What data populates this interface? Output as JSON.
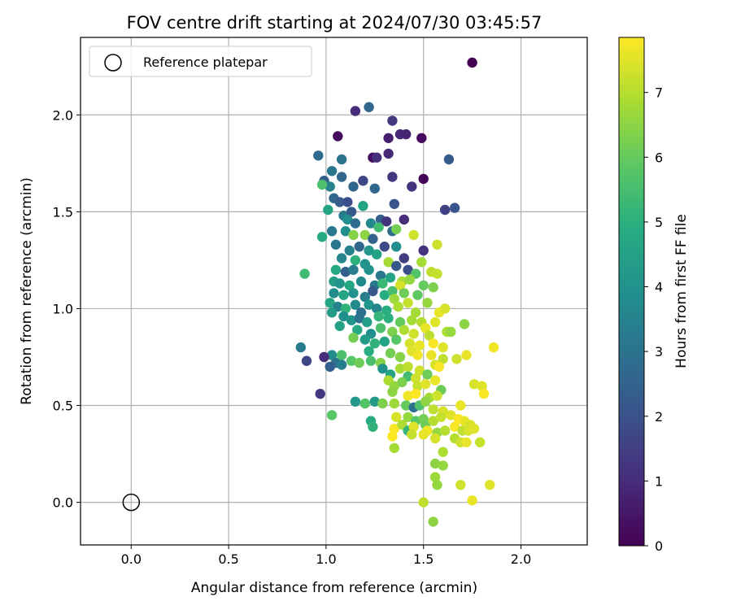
{
  "chart_data": {
    "type": "scatter",
    "title": "FOV centre drift starting at 2024/07/30 03:45:57",
    "xlabel": "Angular distance from reference (arcmin)",
    "ylabel": "Rotation from reference (arcmin)",
    "xlim": [
      -0.26,
      2.34
    ],
    "ylim": [
      -0.22,
      2.4
    ],
    "xticks": [
      0.0,
      0.5,
      1.0,
      1.5,
      2.0
    ],
    "xtick_labels": [
      "0.0",
      "0.5",
      "1.0",
      "1.5",
      "2.0"
    ],
    "yticks": [
      0.0,
      0.5,
      1.0,
      1.5,
      2.0
    ],
    "ytick_labels": [
      "0.0",
      "0.5",
      "1.0",
      "1.5",
      "2.0"
    ],
    "grid": true,
    "legend": {
      "placement": "upper-left",
      "entries": [
        "Reference platepar"
      ]
    },
    "reference_point": {
      "x": 0.0,
      "y": 0.0,
      "marker": "open-circle",
      "edge_color": "#000000"
    },
    "colorbar": {
      "label": "Hours from first FF file",
      "colormap": "viridis",
      "min": 0,
      "max": 7.85,
      "ticks": [
        0,
        1,
        2,
        3,
        4,
        5,
        6,
        7
      ],
      "tick_labels": [
        "0",
        "1",
        "2",
        "3",
        "4",
        "5",
        "6",
        "7"
      ]
    },
    "points": [
      {
        "x": 1.75,
        "y": 2.27,
        "h": 0.0
      },
      {
        "x": 1.06,
        "y": 1.89,
        "h": 0.2
      },
      {
        "x": 1.24,
        "y": 1.78,
        "h": 0.3
      },
      {
        "x": 1.49,
        "y": 1.88,
        "h": 0.2
      },
      {
        "x": 1.5,
        "y": 1.67,
        "h": 0.1
      },
      {
        "x": 1.32,
        "y": 1.88,
        "h": 0.7
      },
      {
        "x": 1.38,
        "y": 1.9,
        "h": 0.9
      },
      {
        "x": 1.41,
        "y": 1.9,
        "h": 0.8
      },
      {
        "x": 1.32,
        "y": 1.8,
        "h": 0.9
      },
      {
        "x": 1.26,
        "y": 1.78,
        "h": 1.1
      },
      {
        "x": 1.15,
        "y": 2.02,
        "h": 1.0
      },
      {
        "x": 1.34,
        "y": 1.97,
        "h": 1.3
      },
      {
        "x": 1.44,
        "y": 1.63,
        "h": 1.2
      },
      {
        "x": 1.34,
        "y": 1.68,
        "h": 1.3
      },
      {
        "x": 1.22,
        "y": 2.04,
        "h": 2.6
      },
      {
        "x": 1.63,
        "y": 1.77,
        "h": 2.3
      },
      {
        "x": 1.61,
        "y": 1.51,
        "h": 1.5
      },
      {
        "x": 1.66,
        "y": 1.52,
        "h": 2.1
      },
      {
        "x": 1.5,
        "y": 1.3,
        "h": 1.2
      },
      {
        "x": 0.96,
        "y": 1.79,
        "h": 2.8
      },
      {
        "x": 1.08,
        "y": 1.77,
        "h": 3.0
      },
      {
        "x": 1.03,
        "y": 1.71,
        "h": 3.1
      },
      {
        "x": 0.99,
        "y": 1.66,
        "h": 2.4
      },
      {
        "x": 1.02,
        "y": 1.63,
        "h": 3.5
      },
      {
        "x": 0.98,
        "y": 1.64,
        "h": 5.6
      },
      {
        "x": 1.08,
        "y": 1.68,
        "h": 2.6
      },
      {
        "x": 1.14,
        "y": 1.63,
        "h": 2.6
      },
      {
        "x": 1.19,
        "y": 1.66,
        "h": 1.7
      },
      {
        "x": 1.25,
        "y": 1.62,
        "h": 2.6
      },
      {
        "x": 1.35,
        "y": 1.54,
        "h": 2.1
      },
      {
        "x": 1.04,
        "y": 1.57,
        "h": 2.7
      },
      {
        "x": 1.07,
        "y": 1.55,
        "h": 2.3
      },
      {
        "x": 1.11,
        "y": 1.55,
        "h": 1.9
      },
      {
        "x": 1.01,
        "y": 1.51,
        "h": 4.6
      },
      {
        "x": 1.09,
        "y": 1.48,
        "h": 3.3
      },
      {
        "x": 1.13,
        "y": 1.5,
        "h": 2.2
      },
      {
        "x": 1.19,
        "y": 1.53,
        "h": 4.6
      },
      {
        "x": 1.11,
        "y": 1.46,
        "h": 3.9
      },
      {
        "x": 1.15,
        "y": 1.44,
        "h": 2.8
      },
      {
        "x": 1.23,
        "y": 1.44,
        "h": 3.7
      },
      {
        "x": 1.28,
        "y": 1.46,
        "h": 2.4
      },
      {
        "x": 1.31,
        "y": 1.45,
        "h": 1.2
      },
      {
        "x": 1.4,
        "y": 1.46,
        "h": 1.0
      },
      {
        "x": 0.98,
        "y": 1.37,
        "h": 4.8
      },
      {
        "x": 1.03,
        "y": 1.4,
        "h": 3.2
      },
      {
        "x": 1.1,
        "y": 1.4,
        "h": 3.9
      },
      {
        "x": 1.14,
        "y": 1.38,
        "h": 6.4
      },
      {
        "x": 1.2,
        "y": 1.38,
        "h": 6.5
      },
      {
        "x": 1.24,
        "y": 1.36,
        "h": 2.5
      },
      {
        "x": 1.27,
        "y": 1.42,
        "h": 5.4
      },
      {
        "x": 1.34,
        "y": 1.4,
        "h": 2.8
      },
      {
        "x": 1.36,
        "y": 1.41,
        "h": 6.2
      },
      {
        "x": 1.45,
        "y": 1.38,
        "h": 7.3
      },
      {
        "x": 1.57,
        "y": 1.33,
        "h": 7.3
      },
      {
        "x": 1.05,
        "y": 1.33,
        "h": 3.1
      },
      {
        "x": 1.12,
        "y": 1.3,
        "h": 3.5
      },
      {
        "x": 1.17,
        "y": 1.32,
        "h": 2.6
      },
      {
        "x": 1.22,
        "y": 1.3,
        "h": 4.2
      },
      {
        "x": 1.3,
        "y": 1.32,
        "h": 1.8
      },
      {
        "x": 1.36,
        "y": 1.32,
        "h": 3.9
      },
      {
        "x": 1.08,
        "y": 1.26,
        "h": 3.6
      },
      {
        "x": 1.15,
        "y": 1.25,
        "h": 5.0
      },
      {
        "x": 1.2,
        "y": 1.23,
        "h": 4.0
      },
      {
        "x": 1.26,
        "y": 1.28,
        "h": 4.5
      },
      {
        "x": 1.32,
        "y": 1.24,
        "h": 6.8
      },
      {
        "x": 1.36,
        "y": 1.22,
        "h": 2.2
      },
      {
        "x": 1.4,
        "y": 1.26,
        "h": 1.4
      },
      {
        "x": 1.49,
        "y": 1.24,
        "h": 6.8
      },
      {
        "x": 1.54,
        "y": 1.19,
        "h": 7.1
      },
      {
        "x": 1.57,
        "y": 1.18,
        "h": 7.2
      },
      {
        "x": 0.89,
        "y": 1.18,
        "h": 5.4
      },
      {
        "x": 1.05,
        "y": 1.2,
        "h": 4.8
      },
      {
        "x": 1.1,
        "y": 1.19,
        "h": 2.4
      },
      {
        "x": 1.14,
        "y": 1.2,
        "h": 3.3
      },
      {
        "x": 1.22,
        "y": 1.2,
        "h": 4.0
      },
      {
        "x": 1.28,
        "y": 1.17,
        "h": 3.1
      },
      {
        "x": 1.33,
        "y": 1.16,
        "h": 4.6
      },
      {
        "x": 1.42,
        "y": 1.2,
        "h": 1.9
      },
      {
        "x": 1.46,
        "y": 1.18,
        "h": 5.7
      },
      {
        "x": 1.39,
        "y": 1.14,
        "h": 6.8
      },
      {
        "x": 1.04,
        "y": 1.14,
        "h": 4.4
      },
      {
        "x": 1.07,
        "y": 1.13,
        "h": 4.1
      },
      {
        "x": 1.12,
        "y": 1.12,
        "h": 4.7
      },
      {
        "x": 1.18,
        "y": 1.14,
        "h": 3.7
      },
      {
        "x": 1.25,
        "y": 1.12,
        "h": 3.2
      },
      {
        "x": 1.29,
        "y": 1.13,
        "h": 5.3
      },
      {
        "x": 1.38,
        "y": 1.12,
        "h": 7.4
      },
      {
        "x": 1.43,
        "y": 1.15,
        "h": 6.6
      },
      {
        "x": 1.5,
        "y": 1.12,
        "h": 6.0
      },
      {
        "x": 1.55,
        "y": 1.11,
        "h": 6.3
      },
      {
        "x": 1.04,
        "y": 1.08,
        "h": 3.8
      },
      {
        "x": 1.09,
        "y": 1.07,
        "h": 4.6
      },
      {
        "x": 1.14,
        "y": 1.08,
        "h": 4.0
      },
      {
        "x": 1.2,
        "y": 1.06,
        "h": 3.4
      },
      {
        "x": 1.24,
        "y": 1.09,
        "h": 2.2
      },
      {
        "x": 1.3,
        "y": 1.07,
        "h": 4.9
      },
      {
        "x": 1.34,
        "y": 1.09,
        "h": 5.5
      },
      {
        "x": 1.35,
        "y": 1.05,
        "h": 6.7
      },
      {
        "x": 1.4,
        "y": 1.08,
        "h": 6.1
      },
      {
        "x": 1.47,
        "y": 1.07,
        "h": 5.9
      },
      {
        "x": 1.02,
        "y": 1.03,
        "h": 4.7
      },
      {
        "x": 1.06,
        "y": 1.01,
        "h": 3.5
      },
      {
        "x": 1.1,
        "y": 1.0,
        "h": 5.1
      },
      {
        "x": 1.15,
        "y": 1.02,
        "h": 3.8
      },
      {
        "x": 1.18,
        "y": 0.98,
        "h": 2.9
      },
      {
        "x": 1.22,
        "y": 1.02,
        "h": 4.1
      },
      {
        "x": 1.26,
        "y": 1.0,
        "h": 3.6
      },
      {
        "x": 1.31,
        "y": 0.99,
        "h": 4.9
      },
      {
        "x": 1.37,
        "y": 1.01,
        "h": 6.9
      },
      {
        "x": 1.42,
        "y": 1.03,
        "h": 7.2
      },
      {
        "x": 1.46,
        "y": 0.98,
        "h": 6.8
      },
      {
        "x": 1.52,
        "y": 1.03,
        "h": 6.6
      },
      {
        "x": 1.58,
        "y": 0.98,
        "h": 7.6
      },
      {
        "x": 1.61,
        "y": 1.0,
        "h": 7.4
      },
      {
        "x": 1.03,
        "y": 0.98,
        "h": 4.3
      },
      {
        "x": 1.09,
        "y": 0.96,
        "h": 3.9
      },
      {
        "x": 1.13,
        "y": 0.94,
        "h": 4.1
      },
      {
        "x": 1.17,
        "y": 0.95,
        "h": 3.0
      },
      {
        "x": 1.21,
        "y": 0.93,
        "h": 4.4
      },
      {
        "x": 1.27,
        "y": 0.96,
        "h": 5.2
      },
      {
        "x": 1.32,
        "y": 0.95,
        "h": 5.0
      },
      {
        "x": 1.38,
        "y": 0.93,
        "h": 6.0
      },
      {
        "x": 1.44,
        "y": 0.94,
        "h": 6.8
      },
      {
        "x": 1.49,
        "y": 0.93,
        "h": 7.0
      },
      {
        "x": 1.56,
        "y": 0.93,
        "h": 7.5
      },
      {
        "x": 1.07,
        "y": 0.91,
        "h": 4.5
      },
      {
        "x": 1.16,
        "y": 0.89,
        "h": 4.8
      },
      {
        "x": 1.23,
        "y": 0.87,
        "h": 3.9
      },
      {
        "x": 1.28,
        "y": 0.9,
        "h": 5.6
      },
      {
        "x": 1.34,
        "y": 0.88,
        "h": 6.3
      },
      {
        "x": 1.4,
        "y": 0.89,
        "h": 6.9
      },
      {
        "x": 1.45,
        "y": 0.87,
        "h": 7.3
      },
      {
        "x": 1.51,
        "y": 0.9,
        "h": 7.6
      },
      {
        "x": 1.53,
        "y": 0.86,
        "h": 7.1
      },
      {
        "x": 1.62,
        "y": 0.88,
        "h": 6.9
      },
      {
        "x": 1.64,
        "y": 0.88,
        "h": 6.6
      },
      {
        "x": 1.71,
        "y": 0.92,
        "h": 6.5
      },
      {
        "x": 1.14,
        "y": 0.85,
        "h": 6.2
      },
      {
        "x": 1.2,
        "y": 0.84,
        "h": 4.3
      },
      {
        "x": 1.25,
        "y": 0.82,
        "h": 5.1
      },
      {
        "x": 1.3,
        "y": 0.83,
        "h": 4.6
      },
      {
        "x": 1.36,
        "y": 0.84,
        "h": 5.8
      },
      {
        "x": 1.43,
        "y": 0.82,
        "h": 7.4
      },
      {
        "x": 1.48,
        "y": 0.81,
        "h": 7.6
      },
      {
        "x": 1.55,
        "y": 0.82,
        "h": 7.8
      },
      {
        "x": 1.6,
        "y": 0.8,
        "h": 7.5
      },
      {
        "x": 1.86,
        "y": 0.8,
        "h": 7.7
      },
      {
        "x": 0.87,
        "y": 0.8,
        "h": 3.3
      },
      {
        "x": 1.03,
        "y": 0.76,
        "h": 3.8
      },
      {
        "x": 1.05,
        "y": 0.72,
        "h": 3.0
      },
      {
        "x": 1.08,
        "y": 0.76,
        "h": 5.6
      },
      {
        "x": 1.13,
        "y": 0.73,
        "h": 5.8
      },
      {
        "x": 1.17,
        "y": 0.72,
        "h": 6.1
      },
      {
        "x": 1.22,
        "y": 0.78,
        "h": 4.9
      },
      {
        "x": 1.23,
        "y": 0.73,
        "h": 5.6
      },
      {
        "x": 1.28,
        "y": 0.72,
        "h": 6.4
      },
      {
        "x": 1.33,
        "y": 0.77,
        "h": 6.2
      },
      {
        "x": 1.38,
        "y": 0.75,
        "h": 6.4
      },
      {
        "x": 1.44,
        "y": 0.78,
        "h": 7.5
      },
      {
        "x": 1.47,
        "y": 0.76,
        "h": 7.7
      },
      {
        "x": 1.54,
        "y": 0.76,
        "h": 7.6
      },
      {
        "x": 1.56,
        "y": 0.71,
        "h": 7.4
      },
      {
        "x": 1.6,
        "y": 0.74,
        "h": 7.1
      },
      {
        "x": 1.67,
        "y": 0.74,
        "h": 7.3
      },
      {
        "x": 1.72,
        "y": 0.76,
        "h": 7.6
      },
      {
        "x": 0.9,
        "y": 0.73,
        "h": 1.7
      },
      {
        "x": 0.99,
        "y": 0.75,
        "h": 1.0
      },
      {
        "x": 1.02,
        "y": 0.7,
        "h": 2.4
      },
      {
        "x": 1.08,
        "y": 0.71,
        "h": 3.4
      },
      {
        "x": 1.29,
        "y": 0.69,
        "h": 4.0
      },
      {
        "x": 1.38,
        "y": 0.69,
        "h": 6.8
      },
      {
        "x": 1.42,
        "y": 0.7,
        "h": 7.1
      },
      {
        "x": 1.48,
        "y": 0.68,
        "h": 7.3
      },
      {
        "x": 1.58,
        "y": 0.7,
        "h": 7.8
      },
      {
        "x": 1.33,
        "y": 0.66,
        "h": 4.5
      },
      {
        "x": 1.42,
        "y": 0.65,
        "h": 5.4
      },
      {
        "x": 1.46,
        "y": 0.64,
        "h": 7.3
      },
      {
        "x": 1.52,
        "y": 0.66,
        "h": 6.1
      },
      {
        "x": 1.56,
        "y": 0.63,
        "h": 7.6
      },
      {
        "x": 1.32,
        "y": 0.63,
        "h": 6.9
      },
      {
        "x": 1.35,
        "y": 0.6,
        "h": 6.6
      },
      {
        "x": 1.39,
        "y": 0.62,
        "h": 6.3
      },
      {
        "x": 1.47,
        "y": 0.6,
        "h": 7.2
      },
      {
        "x": 1.51,
        "y": 0.61,
        "h": 7.5
      },
      {
        "x": 1.59,
        "y": 0.58,
        "h": 6.1
      },
      {
        "x": 1.76,
        "y": 0.61,
        "h": 7.4
      },
      {
        "x": 1.8,
        "y": 0.6,
        "h": 7.5
      },
      {
        "x": 1.81,
        "y": 0.56,
        "h": 7.8
      },
      {
        "x": 0.97,
        "y": 0.56,
        "h": 1.3
      },
      {
        "x": 1.34,
        "y": 0.57,
        "h": 6.5
      },
      {
        "x": 1.42,
        "y": 0.55,
        "h": 7.7
      },
      {
        "x": 1.46,
        "y": 0.56,
        "h": 7.9
      },
      {
        "x": 1.53,
        "y": 0.54,
        "h": 6.8
      },
      {
        "x": 1.57,
        "y": 0.55,
        "h": 7.3
      },
      {
        "x": 1.15,
        "y": 0.52,
        "h": 4.2
      },
      {
        "x": 1.2,
        "y": 0.51,
        "h": 5.7
      },
      {
        "x": 1.25,
        "y": 0.52,
        "h": 4.3
      },
      {
        "x": 1.29,
        "y": 0.51,
        "h": 6.3
      },
      {
        "x": 1.35,
        "y": 0.51,
        "h": 6.7
      },
      {
        "x": 1.41,
        "y": 0.5,
        "h": 6.0
      },
      {
        "x": 1.45,
        "y": 0.49,
        "h": 2.9
      },
      {
        "x": 1.48,
        "y": 0.5,
        "h": 5.6
      },
      {
        "x": 1.51,
        "y": 0.52,
        "h": 6.5
      },
      {
        "x": 1.55,
        "y": 0.48,
        "h": 7.1
      },
      {
        "x": 1.6,
        "y": 0.47,
        "h": 7.4
      },
      {
        "x": 1.69,
        "y": 0.5,
        "h": 7.6
      },
      {
        "x": 1.03,
        "y": 0.45,
        "h": 5.8
      },
      {
        "x": 1.23,
        "y": 0.42,
        "h": 4.8
      },
      {
        "x": 1.24,
        "y": 0.39,
        "h": 5.1
      },
      {
        "x": 1.36,
        "y": 0.44,
        "h": 7.4
      },
      {
        "x": 1.42,
        "y": 0.44,
        "h": 6.6
      },
      {
        "x": 1.46,
        "y": 0.42,
        "h": 5.8
      },
      {
        "x": 1.5,
        "y": 0.43,
        "h": 6.2
      },
      {
        "x": 1.51,
        "y": 0.4,
        "h": 6.1
      },
      {
        "x": 1.55,
        "y": 0.42,
        "h": 7.0
      },
      {
        "x": 1.59,
        "y": 0.44,
        "h": 7.2
      },
      {
        "x": 1.64,
        "y": 0.45,
        "h": 7.5
      },
      {
        "x": 1.68,
        "y": 0.43,
        "h": 7.9
      },
      {
        "x": 1.71,
        "y": 0.42,
        "h": 7.6
      },
      {
        "x": 1.74,
        "y": 0.4,
        "h": 7.4
      },
      {
        "x": 1.35,
        "y": 0.38,
        "h": 7.8
      },
      {
        "x": 1.39,
        "y": 0.4,
        "h": 6.9
      },
      {
        "x": 1.42,
        "y": 0.37,
        "h": 5.2
      },
      {
        "x": 1.45,
        "y": 0.39,
        "h": 7.5
      },
      {
        "x": 1.52,
        "y": 0.37,
        "h": 7.7
      },
      {
        "x": 1.57,
        "y": 0.36,
        "h": 6.6
      },
      {
        "x": 1.61,
        "y": 0.37,
        "h": 7.0
      },
      {
        "x": 1.66,
        "y": 0.39,
        "h": 7.8
      },
      {
        "x": 1.7,
        "y": 0.37,
        "h": 7.1
      },
      {
        "x": 1.73,
        "y": 0.37,
        "h": 7.4
      },
      {
        "x": 1.76,
        "y": 0.38,
        "h": 7.5
      },
      {
        "x": 1.34,
        "y": 0.34,
        "h": 7.9
      },
      {
        "x": 1.44,
        "y": 0.35,
        "h": 7.2
      },
      {
        "x": 1.5,
        "y": 0.35,
        "h": 7.6
      },
      {
        "x": 1.56,
        "y": 0.33,
        "h": 7.4
      },
      {
        "x": 1.66,
        "y": 0.33,
        "h": 7.0
      },
      {
        "x": 1.69,
        "y": 0.31,
        "h": 7.3
      },
      {
        "x": 1.72,
        "y": 0.31,
        "h": 7.6
      },
      {
        "x": 1.79,
        "y": 0.31,
        "h": 7.2
      },
      {
        "x": 1.35,
        "y": 0.28,
        "h": 6.8
      },
      {
        "x": 1.6,
        "y": 0.26,
        "h": 6.9
      },
      {
        "x": 1.56,
        "y": 0.2,
        "h": 6.5
      },
      {
        "x": 1.6,
        "y": 0.19,
        "h": 6.6
      },
      {
        "x": 1.56,
        "y": 0.13,
        "h": 6.7
      },
      {
        "x": 1.57,
        "y": 0.09,
        "h": 6.6
      },
      {
        "x": 1.69,
        "y": 0.09,
        "h": 7.3
      },
      {
        "x": 1.84,
        "y": 0.09,
        "h": 7.5
      },
      {
        "x": 1.5,
        "y": 0.0,
        "h": 7.1
      },
      {
        "x": 1.75,
        "y": 0.01,
        "h": 7.6
      },
      {
        "x": 1.55,
        "y": -0.1,
        "h": 6.5
      }
    ]
  }
}
